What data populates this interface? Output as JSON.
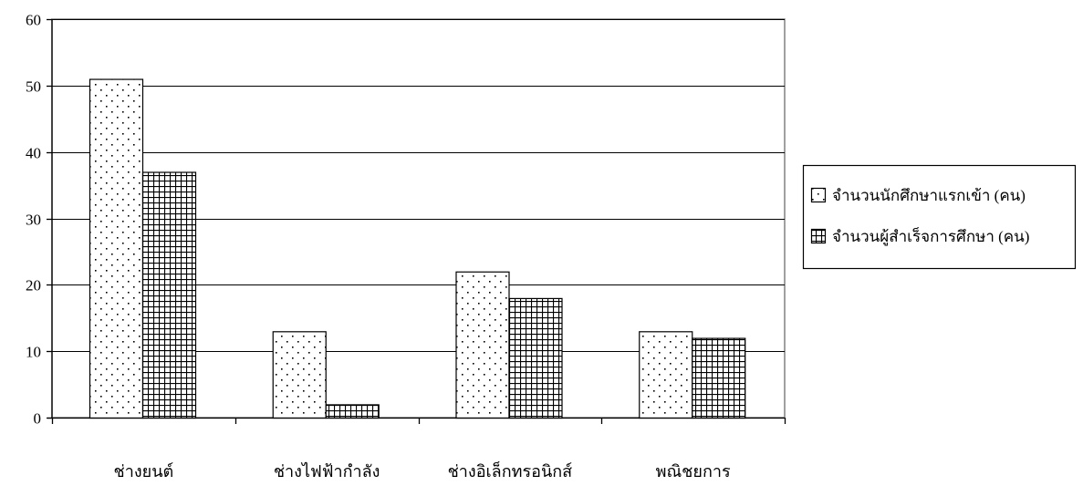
{
  "chart_data": {
    "type": "bar",
    "categories": [
      "ช่างยนต์",
      "ช่างไฟฟ้ากำลัง",
      "ช่างอิเล็กทรอนิกส์",
      "พณิชยการ"
    ],
    "series": [
      {
        "name": "จำนวนนักศึกษาแรกเข้า (คน)",
        "values": [
          51,
          13,
          22,
          13
        ],
        "pattern": "dots"
      },
      {
        "name": "จำนวนผู้สำเร็จการศึกษา (คน)",
        "values": [
          37,
          2,
          18,
          12
        ],
        "pattern": "grid"
      }
    ],
    "ylim": [
      0,
      60
    ],
    "yticks": [
      0,
      10,
      20,
      30,
      40,
      50,
      60
    ],
    "grid": true,
    "legend_position": "right",
    "colors": {
      "bar_fill": "#ffffff",
      "stroke": "#000000",
      "background": "#ffffff"
    }
  }
}
